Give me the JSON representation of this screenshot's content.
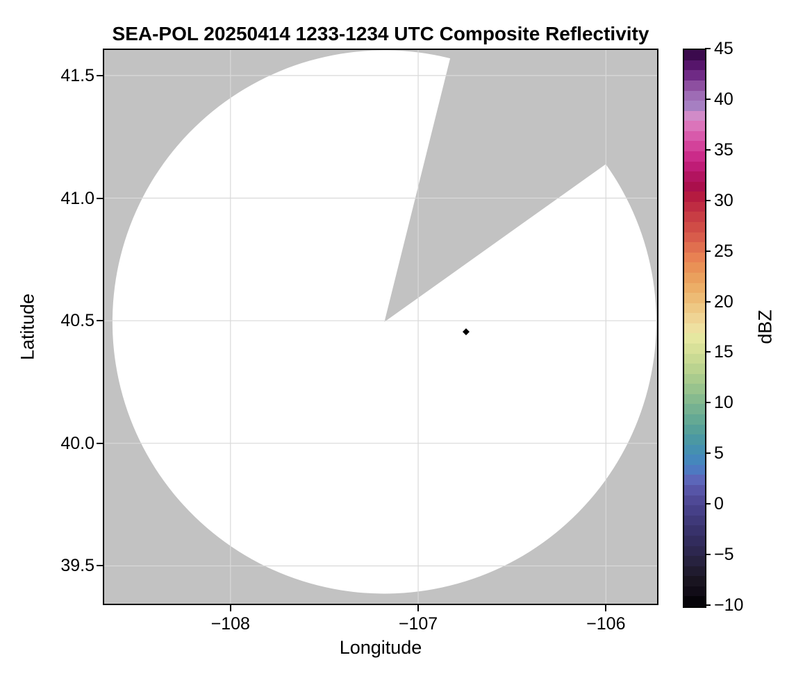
{
  "figure": {
    "title": "SEA-POL 20250414 1233-1234 UTC Composite Reflectivity",
    "xlabel": "Longitude",
    "ylabel": "Latitude"
  },
  "axes": {
    "x_ticks": [
      {
        "label": "−108",
        "value": -108
      },
      {
        "label": "−107",
        "value": -107
      },
      {
        "label": "−106",
        "value": -106
      }
    ],
    "y_ticks": [
      {
        "label": "41.5",
        "value": 41.5
      },
      {
        "label": "41.0",
        "value": 41.0
      },
      {
        "label": "40.5",
        "value": 40.5
      },
      {
        "label": "40.0",
        "value": 40.0
      },
      {
        "label": "39.5",
        "value": 39.5
      }
    ]
  },
  "colorbar": {
    "label": "dBZ",
    "vmin": -10,
    "vmax": 45,
    "ticks": [
      {
        "label": "45",
        "value": 45
      },
      {
        "label": "40",
        "value": 40
      },
      {
        "label": "35",
        "value": 35
      },
      {
        "label": "30",
        "value": 30
      },
      {
        "label": "25",
        "value": 25
      },
      {
        "label": "20",
        "value": 20
      },
      {
        "label": "15",
        "value": 15
      },
      {
        "label": "10",
        "value": 10
      },
      {
        "label": "5",
        "value": 5
      },
      {
        "label": "0",
        "value": 0
      },
      {
        "label": "−5",
        "value": -5
      },
      {
        "label": "−10",
        "value": -10
      }
    ],
    "band_colors": [
      "#060409",
      "#110c17",
      "#191420",
      "#201b2f",
      "#27223f",
      "#2d274f",
      "#322c5d",
      "#38326b",
      "#3f3979",
      "#464088",
      "#4f4996",
      "#5755a7",
      "#5c66b9",
      "#4e79c1",
      "#4587bc",
      "#4590b0",
      "#4b98a3",
      "#56a099",
      "#64a994",
      "#75b191",
      "#86ba8e",
      "#98c38d",
      "#a9cb8d",
      "#bad38f",
      "#c9da93",
      "#d8e199",
      "#e5e7a0",
      "#eee0a0",
      "#efd494",
      "#eec884",
      "#edbb75",
      "#ecae67",
      "#eaa05d",
      "#e99156",
      "#e88153",
      "#e06f4f",
      "#d85c4b",
      "#d04c46",
      "#c83d44",
      "#bf2c42",
      "#b51b40",
      "#aa0f4c",
      "#b2145f",
      "#bf1c76",
      "#cb2b89",
      "#d3429a",
      "#d85aab",
      "#db74ba",
      "#d18bc8",
      "#a67fc2",
      "#9e6cb5",
      "#8d4fa0",
      "#6f2a85",
      "#56156b",
      "#3b0a4d"
    ]
  },
  "colors": {
    "no_data_gray": "#c2c2c2",
    "coverage_white": "#ffffff",
    "gridline": "#d9d9d9",
    "frame": "#000000",
    "marker": "#000000"
  },
  "chart_data": {
    "type": "heatmap",
    "title": "SEA-POL 20250414 1233-1234 UTC Composite Reflectivity",
    "xlabel": "Longitude",
    "ylabel": "Latitude",
    "xlim": [
      -108.68,
      -105.72
    ],
    "ylim": [
      39.34,
      41.61
    ],
    "x_ticks": [
      -108,
      -107,
      -106
    ],
    "y_ticks": [
      39.5,
      40.0,
      40.5,
      41.0,
      41.5
    ],
    "grid": true,
    "legend_position": "right-colorbar",
    "colorbar": {
      "label": "dBZ",
      "min": -10,
      "max": 45,
      "tick_interval": 5,
      "style": "stepped 1-dBZ bands",
      "colormap": "ChaseSpectral-style: black, dark purple, violet-blue, blue, teal, green, pale yellow, tan, orange, red, crimson, magenta, pink, lavender, dark purple"
    },
    "radar": {
      "center_lon": -107.18,
      "center_lat": 40.495,
      "range_radius_deg_lat": 1.108,
      "blocked_sector_azimuth_deg": [
        14,
        54.5
      ],
      "coverage_fill": "white (no echoes above minimum reflectivity)",
      "outside_coverage_fill": "gray (no data)"
    },
    "marker": {
      "lon": -106.745,
      "lat": 40.455,
      "shape": "diamond",
      "color": "#000000"
    }
  }
}
